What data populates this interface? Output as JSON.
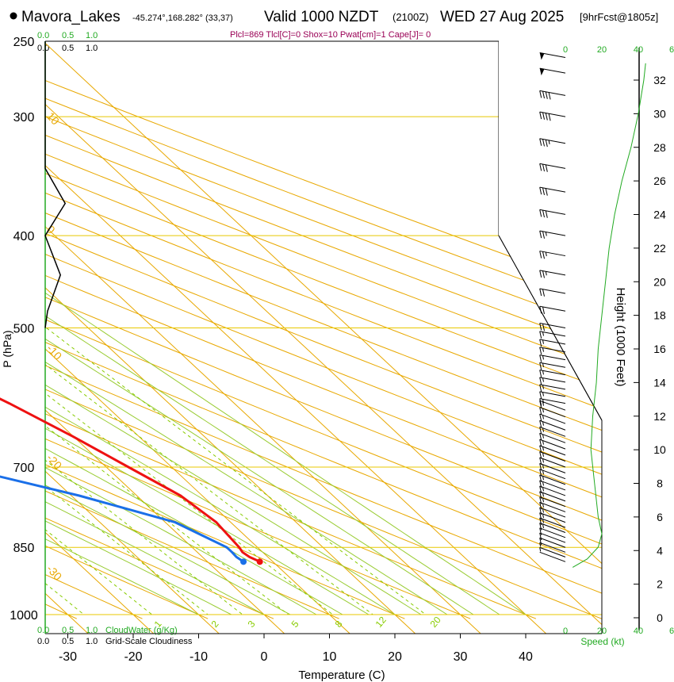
{
  "header": {
    "station": "Mavora_Lakes",
    "coords": "-45.274°,168.282° (33,37)",
    "valid": "Valid 1000 NZDT",
    "utc": "(2100Z)",
    "date": "WED 27 Aug 2025",
    "forecast": "[9hrFcst@1805z]",
    "indices": "Plcl=869 Tlcl[C]=0 Shox=10 Pwat[cm]=1 Cape[J]= 0"
  },
  "colors": {
    "temperature": "#ee1111",
    "dewpoint": "#1a6fe8",
    "isotherm": "#e8a800",
    "dry_adiabat": "#e8a800",
    "moist_adiabat": "#99cc33",
    "mixing_ratio": "#88cc00",
    "cloud": "#22aa22",
    "frame": "#000000"
  },
  "chart_data": {
    "type": "skew-t",
    "xlabel": "Temperature (C)",
    "ylabel": "P (hPa)",
    "right_label": "Height (1000 Feet)",
    "speed_label": "Speed (kt)",
    "x_ticks": [
      "-30",
      "-20",
      "-10",
      "0",
      "10",
      "20",
      "30",
      "40"
    ],
    "x_tick_values": [
      -30,
      -20,
      -10,
      0,
      10,
      20,
      30,
      40
    ],
    "pressure_ticks": [
      "250",
      "300",
      "400",
      "500",
      "700",
      "850",
      "1000"
    ],
    "pressure_tick_values": [
      250,
      300,
      400,
      500,
      700,
      850,
      1000
    ],
    "plim": [
      250,
      1000
    ],
    "height_ticks": [
      "0",
      "2",
      "4",
      "6",
      "8",
      "10",
      "12",
      "14",
      "16",
      "18",
      "20",
      "22",
      "24",
      "26",
      "28",
      "30",
      "32"
    ],
    "height_tick_values": [
      0,
      2,
      4,
      6,
      8,
      10,
      12,
      14,
      16,
      18,
      20,
      22,
      24,
      26,
      28,
      30,
      32
    ],
    "isotherm_labels": [
      "10",
      "0",
      "-10",
      "-20",
      "-30",
      "0",
      "10",
      "20",
      "30"
    ],
    "isotherm_label_values": [
      10,
      0,
      -10,
      -20,
      -30,
      0,
      10,
      20,
      30
    ],
    "mixing_ratio_labels": [
      "1",
      "2",
      "3",
      "5",
      "8",
      "12",
      "20"
    ],
    "mixing_ratio_values": [
      1,
      2,
      3,
      5,
      8,
      12,
      20
    ],
    "cloud_top": {
      "label_a": "0.0",
      "label_b": "0.5",
      "label_c": "1.0"
    },
    "cloud_bottom_green": {
      "label_a": "0.0",
      "label_b": "0.5",
      "label_c": "1.0",
      "name": "CloudWater (g/Kg)"
    },
    "cloud_bottom_black": {
      "label_a": "0.0",
      "label_b": "0.5",
      "label_c": "1.0",
      "name": "Grid-Scale Cloudiness"
    },
    "speed_ticks_top": [
      "0",
      "20",
      "40",
      "6"
    ],
    "speed_ticks_bottom": [
      "0",
      "20",
      "40",
      "6"
    ],
    "temperature": {
      "name": "Temperature",
      "p": [
        880,
        870,
        860,
        850,
        800,
        750,
        700,
        650,
        600,
        550,
        500,
        450,
        400,
        350,
        300,
        270
      ],
      "t": [
        8.0,
        7.2,
        6.9,
        7.2,
        7.8,
        6.7,
        3.4,
        -0.1,
        -4.4,
        -9.8,
        -15.5,
        -22.0,
        -30.0,
        -38.5,
        -48.0,
        -55.0
      ]
    },
    "dewpoint": {
      "name": "Dewpoint",
      "p": [
        880,
        870,
        860,
        850,
        800,
        750,
        700,
        650,
        620,
        600,
        580,
        550,
        500,
        450,
        400,
        350,
        300,
        265
      ],
      "td": [
        5.5,
        5.2,
        5.3,
        5.3,
        1.5,
        -8.8,
        -22.3,
        -34.3,
        -40.5,
        -42.2,
        -41.5,
        -31.0,
        -21.2,
        -26.0,
        -34.4,
        -44.0,
        -56.0,
        -67.0
      ]
    },
    "cloudiness_profile": {
      "p": [
        250,
        340,
        370,
        400,
        440,
        480,
        500
      ],
      "v": [
        0.0,
        0.0,
        0.42,
        0.0,
        0.32,
        0.05,
        0.0
      ]
    },
    "speed_profile": {
      "h": [
        3.0,
        3.5,
        4.2,
        5.0,
        6.0,
        8.0,
        10.0,
        12.0,
        14.0,
        16.0,
        18.0,
        20.0,
        22.0,
        24.0,
        26.0,
        28.0,
        30.0,
        32.0,
        33.0
      ],
      "s": [
        4,
        12,
        18,
        20,
        18,
        16,
        14,
        15,
        17,
        18,
        20,
        22,
        24,
        27,
        31,
        36,
        40,
        43,
        44
      ]
    },
    "wind_barb_pressures": [
      880,
      870,
      860,
      850,
      840,
      830,
      820,
      810,
      800,
      790,
      780,
      770,
      760,
      750,
      740,
      730,
      720,
      710,
      700,
      690,
      680,
      670,
      660,
      650,
      640,
      630,
      620,
      610,
      600,
      590,
      580,
      570,
      560,
      550,
      540,
      530,
      520,
      510,
      500,
      480,
      460,
      440,
      420,
      400,
      380,
      360,
      340,
      320,
      300,
      285,
      270,
      260
    ],
    "wind_barb_speeds": [
      4,
      5,
      7,
      10,
      12,
      14,
      15,
      15,
      15,
      15,
      15,
      15,
      15,
      15,
      15,
      15,
      15,
      15,
      15,
      15,
      15,
      15,
      15,
      15,
      15,
      15,
      15,
      15,
      15,
      15,
      15,
      15,
      15,
      15,
      15,
      15,
      15,
      15,
      20,
      20,
      20,
      25,
      25,
      25,
      30,
      30,
      30,
      35,
      40,
      40,
      50,
      50
    ]
  }
}
